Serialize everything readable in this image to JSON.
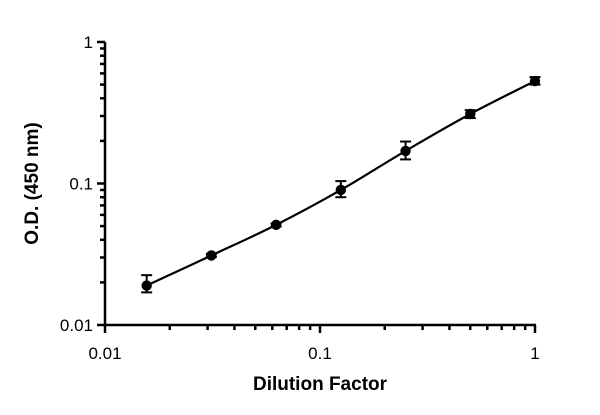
{
  "chart_data": {
    "type": "scatter",
    "title": "",
    "xlabel": "Dilution Factor",
    "ylabel": "O.D. (450 nm)",
    "xscale": "log",
    "yscale": "log",
    "xlim": [
      0.01,
      1
    ],
    "ylim": [
      0.01,
      1
    ],
    "xticks": [
      {
        "value": 0.01,
        "label": "0.01"
      },
      {
        "value": 0.1,
        "label": "0.1"
      },
      {
        "value": 1,
        "label": "1"
      }
    ],
    "yticks": [
      {
        "value": 0.01,
        "label": "0.01"
      },
      {
        "value": 0.1,
        "label": "0.1"
      },
      {
        "value": 1,
        "label": "1"
      }
    ],
    "grid": false,
    "fit_curve": true,
    "series": [
      {
        "points": [
          {
            "x": 0.015625,
            "y": 0.019,
            "err_low": 0.017,
            "err_high": 0.0225
          },
          {
            "x": 0.03125,
            "y": 0.031,
            "err_low": 0.0303,
            "err_high": 0.0318
          },
          {
            "x": 0.0625,
            "y": 0.051,
            "err_low": 0.0497,
            "err_high": 0.0523
          },
          {
            "x": 0.125,
            "y": 0.09,
            "err_low": 0.08,
            "err_high": 0.104
          },
          {
            "x": 0.25,
            "y": 0.17,
            "err_low": 0.148,
            "err_high": 0.198
          },
          {
            "x": 0.5,
            "y": 0.31,
            "err_low": 0.29,
            "err_high": 0.33
          },
          {
            "x": 1,
            "y": 0.53,
            "err_low": 0.5,
            "err_high": 0.565
          }
        ]
      }
    ]
  }
}
